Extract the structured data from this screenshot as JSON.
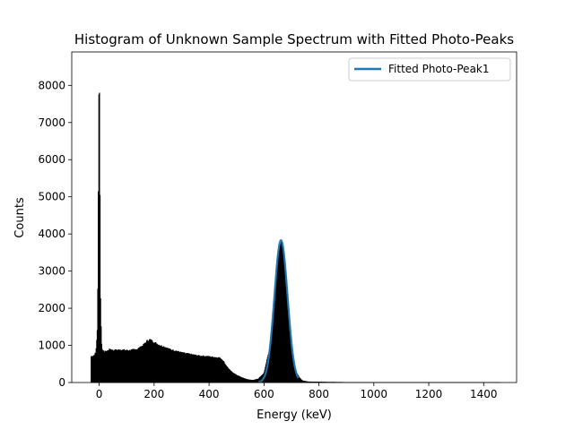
{
  "chart_data": {
    "type": "histogram",
    "title": "Histogram of Unknown Sample Spectrum with Fitted Photo-Peaks",
    "xlabel": "Energy (keV)",
    "ylabel": "Counts",
    "xlim": [
      -100,
      1520
    ],
    "ylim": [
      0,
      8900
    ],
    "xticks": [
      0,
      200,
      400,
      600,
      800,
      1000,
      1200,
      1400
    ],
    "yticks": [
      0,
      1000,
      2000,
      3000,
      4000,
      5000,
      6000,
      7000,
      8000
    ],
    "grid": false,
    "legend": {
      "position": "top-right",
      "entries": [
        "Fitted Photo-Peak1"
      ]
    },
    "series": [
      {
        "kind": "histogram",
        "color": "#000000",
        "x_range": [
          -30,
          1460
        ],
        "points": [
          [
            -30,
            0
          ],
          [
            -29,
            700
          ],
          [
            -20,
            720
          ],
          [
            -12,
            800
          ],
          [
            -6,
            1500
          ],
          [
            -4,
            3500
          ],
          [
            -2,
            7000
          ],
          [
            0,
            8500
          ],
          [
            1,
            7900
          ],
          [
            3,
            5000
          ],
          [
            5,
            2300
          ],
          [
            8,
            1100
          ],
          [
            12,
            850
          ],
          [
            20,
            820
          ],
          [
            30,
            850
          ],
          [
            40,
            900
          ],
          [
            50,
            860
          ],
          [
            80,
            880
          ],
          [
            110,
            860
          ],
          [
            140,
            900
          ],
          [
            160,
            1000
          ],
          [
            175,
            1120
          ],
          [
            185,
            1150
          ],
          [
            200,
            1080
          ],
          [
            220,
            1000
          ],
          [
            240,
            950
          ],
          [
            260,
            880
          ],
          [
            280,
            850
          ],
          [
            300,
            800
          ],
          [
            330,
            760
          ],
          [
            360,
            720
          ],
          [
            390,
            700
          ],
          [
            420,
            680
          ],
          [
            440,
            660
          ],
          [
            450,
            600
          ],
          [
            460,
            480
          ],
          [
            470,
            380
          ],
          [
            480,
            300
          ],
          [
            500,
            200
          ],
          [
            520,
            130
          ],
          [
            540,
            80
          ],
          [
            560,
            60
          ],
          [
            580,
            100
          ],
          [
            600,
            250
          ],
          [
            620,
            900
          ],
          [
            635,
            2000
          ],
          [
            650,
            3300
          ],
          [
            660,
            3750
          ],
          [
            665,
            3800
          ],
          [
            670,
            3650
          ],
          [
            680,
            2900
          ],
          [
            690,
            1900
          ],
          [
            700,
            900
          ],
          [
            710,
            400
          ],
          [
            720,
            250
          ],
          [
            730,
            120
          ],
          [
            740,
            50
          ],
          [
            760,
            20
          ],
          [
            800,
            15
          ],
          [
            850,
            10
          ],
          [
            900,
            5
          ],
          [
            1000,
            3
          ],
          [
            1200,
            2
          ],
          [
            1440,
            2
          ],
          [
            1450,
            2
          ],
          [
            1460,
            0
          ]
        ]
      },
      {
        "name": "Fitted Photo-Peak1",
        "kind": "gaussian-fit",
        "color": "#1f77b4",
        "amplitude": 3830,
        "mean": 662,
        "sigma": 24,
        "x_range": [
          580,
          725
        ]
      }
    ]
  }
}
